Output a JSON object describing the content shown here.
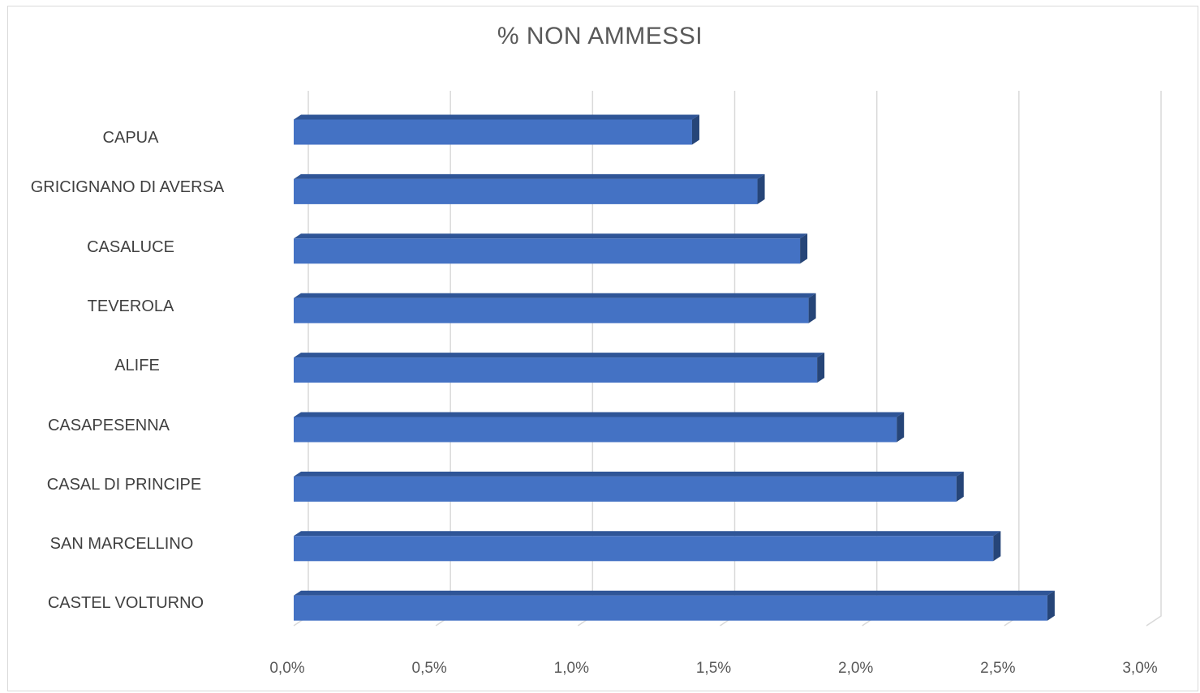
{
  "chart_data": {
    "type": "bar",
    "orientation": "horizontal",
    "style": "3d-clustered",
    "title": "% NON AMMESSI",
    "categories": [
      "CAPUA",
      "GRICIGNANO DI AVERSA",
      "CASALUCE",
      "TEVEROLA",
      "ALIFE",
      "CASAPESENNA",
      "CASAL DI PRINCIPE",
      "SAN MARCELLINO",
      "CASTEL VOLTURNO"
    ],
    "values": [
      1.41,
      1.64,
      1.79,
      1.82,
      1.85,
      2.13,
      2.34,
      2.47,
      2.66
    ],
    "unit": "%",
    "xlim": [
      0,
      3.0
    ],
    "xticks": [
      0,
      0.5,
      1.0,
      1.5,
      2.0,
      2.5,
      3.0
    ],
    "xtick_labels": [
      "0,0%",
      "0,5%",
      "1,0%",
      "1,5%",
      "2,0%",
      "2,5%",
      "3,0%"
    ],
    "grid": "vertical",
    "legend": "none",
    "colors": {
      "bar": "#4472c4",
      "bar_top": "#2f5597",
      "bar_side": "#264578",
      "grid": "#d9d9d9",
      "text": "#595959"
    }
  }
}
